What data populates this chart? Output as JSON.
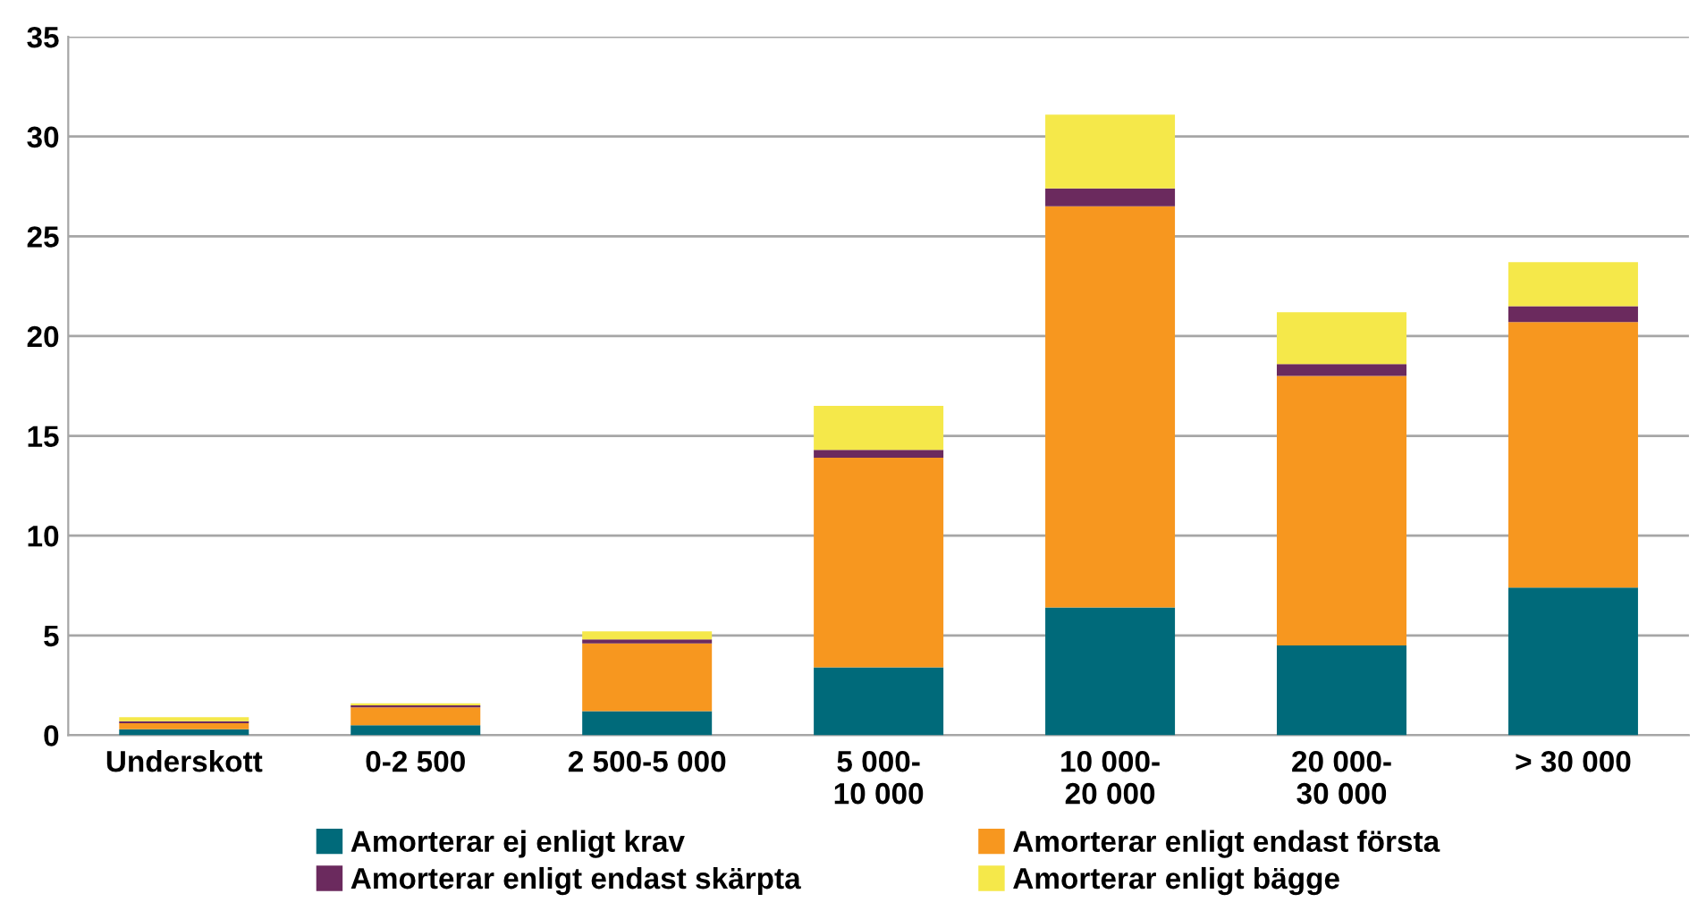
{
  "chart_data": {
    "type": "bar",
    "stacked": true,
    "categories": [
      "Underskott",
      "0-2 500",
      "2 500-5 000",
      "5 000-\n10 000",
      "10 000-\n20 000",
      "20 000-\n30 000",
      "> 30 000"
    ],
    "series": [
      {
        "name": "Amorterar ej enligt krav",
        "color": "#006a7a",
        "values": [
          0.3,
          0.5,
          1.2,
          3.4,
          6.4,
          4.5,
          7.4
        ]
      },
      {
        "name": "Amorterar enligt endast första",
        "color": "#f7971f",
        "values": [
          0.3,
          0.9,
          3.4,
          10.5,
          20.1,
          13.5,
          13.3
        ]
      },
      {
        "name": "Amorterar enligt endast skärpta",
        "color": "#6b2a5e",
        "values": [
          0.1,
          0.1,
          0.2,
          0.4,
          0.9,
          0.6,
          0.8
        ]
      },
      {
        "name": "Amorterar enligt bägge",
        "color": "#f5e84a",
        "values": [
          0.2,
          0.1,
          0.4,
          2.2,
          3.7,
          2.6,
          2.2
        ]
      }
    ],
    "ylim": [
      0,
      35
    ],
    "yticks": [
      0,
      5,
      10,
      15,
      20,
      25,
      30,
      35
    ],
    "grid": "y",
    "legend": "bottom"
  }
}
